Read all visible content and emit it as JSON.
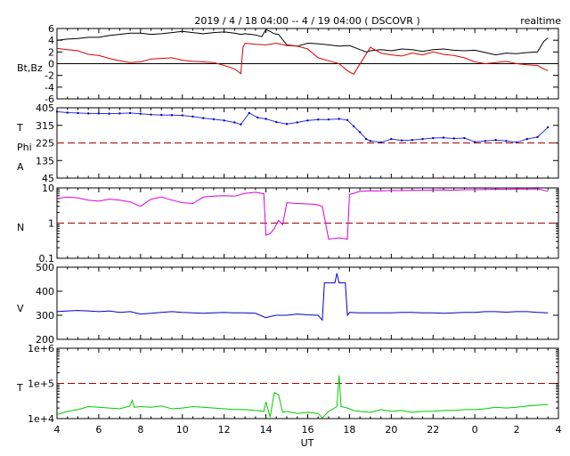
{
  "header": {
    "title": "2019 / 4 / 18  04:00 -- 4 / 19  04:00 ( DSCOVR )",
    "mode": "realtime"
  },
  "x_axis": {
    "label": "UT",
    "tick_labels": [
      "4",
      "6",
      "8",
      "10",
      "12",
      "14",
      "16",
      "18",
      "20",
      "22",
      "0",
      "2",
      "4"
    ]
  },
  "panels": [
    {
      "id": "bt-bz",
      "ylabels": [
        "Bt,Bz"
      ],
      "tick_labels": [
        "6",
        "4",
        "2",
        "0",
        "-2",
        "-4",
        "-6"
      ]
    },
    {
      "id": "t-phi-a",
      "ylabels": [
        "T",
        "Phi",
        "A"
      ],
      "tick_labels": [
        "405",
        "315",
        "225",
        "135",
        "45"
      ]
    },
    {
      "id": "density",
      "ylabels": [
        "N"
      ],
      "tick_labels": [
        "10",
        "1",
        "0.1"
      ]
    },
    {
      "id": "speed",
      "ylabels": [
        "V"
      ],
      "tick_labels": [
        "500",
        "400",
        "300",
        "200"
      ]
    },
    {
      "id": "temperature",
      "ylabels": [
        "T"
      ],
      "tick_labels": [
        "1e+6",
        "1e+5",
        "1e+4"
      ]
    }
  ],
  "chart_data": [
    {
      "type": "line",
      "x_unit": "UT hours (18 Apr 04:00 to 19 Apr 04:00, 28 = 04 UT next day)",
      "ylim": [
        -6,
        6
      ],
      "y_ticks": [
        6,
        4,
        2,
        0,
        -2,
        -4,
        -6
      ],
      "reference_line": 0,
      "series": [
        {
          "color": "#000000",
          "x": [
            4,
            4.5,
            5,
            5.5,
            6,
            6.5,
            7,
            7.5,
            8,
            8.5,
            9,
            9.5,
            10,
            10.5,
            11,
            11.5,
            12,
            12.5,
            12.8,
            13,
            13.5,
            13.8,
            14.0,
            14.2,
            14.4,
            14.6,
            15,
            15.5,
            16,
            16.5,
            17,
            17.5,
            18,
            18.5,
            18.8,
            19,
            19.5,
            20,
            20.5,
            21,
            21.5,
            22,
            22.5,
            23,
            23.5,
            24,
            24.5,
            25,
            25.5,
            26,
            26.5,
            27,
            27.3,
            27.5
          ],
          "y": [
            4.0,
            4.2,
            4.3,
            4.5,
            4.5,
            4.8,
            5.0,
            5.2,
            5.2,
            5.0,
            5.1,
            5.3,
            5.5,
            5.3,
            5.1,
            5.3,
            5.4,
            5.2,
            5.0,
            5.1,
            4.9,
            4.6,
            5.8,
            5.5,
            5.1,
            5.0,
            3.2,
            3.0,
            3.5,
            3.4,
            3.2,
            3.0,
            3.1,
            2.4,
            2.0,
            2.2,
            2.4,
            2.2,
            2.5,
            2.4,
            2.1,
            2.4,
            2.5,
            2.3,
            2.2,
            2.3,
            1.9,
            1.5,
            1.8,
            1.7,
            1.9,
            2.0,
            3.8,
            4.4
          ]
        },
        {
          "color": "#dd0000",
          "x": [
            4,
            4.5,
            5,
            5.5,
            6,
            6.5,
            7,
            7.5,
            8,
            8.5,
            9,
            9.5,
            10,
            10.5,
            11,
            11.5,
            12,
            12.5,
            12.8,
            12.9,
            13,
            13.5,
            14.0,
            14.5,
            15,
            15.5,
            16,
            16.5,
            17,
            17.5,
            17.9,
            18.2,
            18.6,
            19,
            19.5,
            20,
            20.5,
            21,
            21.5,
            22,
            22.5,
            23,
            23.5,
            24,
            24.5,
            25,
            25.5,
            26,
            26.5,
            27,
            27.3,
            27.5
          ],
          "y": [
            2.6,
            2.4,
            2.2,
            1.6,
            1.4,
            0.9,
            0.5,
            0.2,
            0.3,
            0.8,
            0.9,
            1.0,
            0.6,
            0.4,
            0.3,
            0.2,
            -0.3,
            -0.9,
            -1.7,
            2.8,
            3.5,
            3.3,
            3.2,
            3.5,
            3.1,
            3.0,
            2.5,
            1.0,
            0.5,
            0.0,
            -1.2,
            -1.8,
            0.5,
            2.8,
            1.8,
            1.5,
            1.3,
            1.8,
            1.5,
            2.0,
            1.6,
            1.4,
            1.0,
            0.3,
            0.0,
            0.2,
            0.4,
            0.0,
            -0.2,
            -0.3,
            -0.9,
            -1.2
          ]
        }
      ]
    },
    {
      "type": "scatter",
      "ylim": [
        45,
        405
      ],
      "y_ticks": [
        405,
        315,
        225,
        135,
        45
      ],
      "reference_line": 225,
      "series": [
        {
          "color": "#0000cc",
          "x": [
            4,
            4.5,
            5,
            5.5,
            6,
            6.5,
            7,
            7.5,
            8,
            8.5,
            9,
            9.5,
            10,
            10.5,
            11,
            11.5,
            12,
            12.5,
            12.8,
            13.2,
            13.6,
            14.0,
            14.5,
            15,
            15.5,
            16,
            16.5,
            17,
            17.5,
            17.9,
            18.2,
            18.5,
            18.8,
            19,
            19.5,
            20,
            20.5,
            21,
            21.5,
            22,
            22.5,
            23,
            23.5,
            24,
            24.5,
            25,
            25.5,
            26,
            26.5,
            27,
            27.5
          ],
          "y": [
            385,
            380,
            378,
            376,
            376,
            375,
            376,
            378,
            374,
            370,
            368,
            367,
            366,
            360,
            352,
            346,
            340,
            330,
            320,
            378,
            355,
            348,
            332,
            322,
            330,
            340,
            345,
            345,
            348,
            342,
            310,
            280,
            245,
            235,
            228,
            245,
            238,
            240,
            245,
            250,
            252,
            248,
            250,
            230,
            235,
            240,
            235,
            228,
            245,
            255,
            305
          ]
        }
      ]
    },
    {
      "type": "line",
      "y_scale": "log",
      "ylim": [
        0.1,
        10
      ],
      "y_ticks": [
        10,
        1,
        0.1
      ],
      "reference_line": 1,
      "series": [
        {
          "color": "#dd00dd",
          "x": [
            4,
            4.5,
            5,
            5.5,
            6,
            6.5,
            7,
            7.5,
            8,
            8.5,
            9,
            9.5,
            10,
            10.5,
            11,
            11.5,
            12,
            12.5,
            13,
            13.5,
            13.9,
            14.0,
            14.2,
            14.4,
            14.6,
            14.8,
            15.0,
            15.5,
            16.0,
            16.4,
            16.7,
            17.0,
            17.5,
            17.9,
            18.0,
            18.2,
            18.5,
            19,
            19.5,
            20,
            20.5,
            21,
            21.5,
            22,
            22.5,
            23,
            23.5,
            24,
            24.5,
            25,
            25.5,
            26,
            26.5,
            27,
            27.5
          ],
          "y": [
            5.0,
            5.5,
            5.2,
            4.5,
            4.2,
            4.8,
            4.5,
            4.0,
            3.0,
            4.8,
            5.5,
            4.5,
            3.8,
            3.6,
            5.5,
            5.8,
            6.0,
            5.8,
            7.0,
            7.5,
            6.8,
            0.45,
            0.5,
            0.7,
            1.2,
            0.9,
            3.8,
            3.6,
            3.5,
            3.4,
            3.0,
            0.35,
            0.38,
            0.35,
            6.5,
            7.0,
            8.0,
            8.3,
            8.2,
            8.5,
            8.4,
            8.6,
            8.5,
            8.7,
            8.8,
            8.6,
            8.9,
            8.9,
            9.0,
            9.2,
            9.1,
            9.3,
            9.2,
            9.4,
            8.0
          ]
        }
      ]
    },
    {
      "type": "line",
      "ylim": [
        200,
        500
      ],
      "y_ticks": [
        500,
        400,
        300,
        200
      ],
      "series": [
        {
          "color": "#0000cc",
          "x": [
            4,
            4.5,
            5,
            5.5,
            6,
            6.5,
            7,
            7.5,
            8,
            8.5,
            9,
            9.5,
            10,
            10.5,
            11,
            11.5,
            12,
            12.5,
            13,
            13.5,
            14.0,
            14.2,
            14.5,
            15,
            15.5,
            16,
            16.5,
            16.7,
            16.8,
            17.0,
            17.3,
            17.4,
            17.5,
            17.8,
            17.9,
            18.0,
            18.5,
            19,
            19.5,
            20,
            20.5,
            21,
            21.5,
            22,
            22.5,
            23,
            23.5,
            24,
            24.5,
            25,
            25.5,
            26,
            26.5,
            27,
            27.5
          ],
          "y": [
            315,
            318,
            320,
            318,
            315,
            318,
            312,
            315,
            305,
            308,
            312,
            315,
            312,
            310,
            308,
            310,
            312,
            310,
            310,
            308,
            290,
            295,
            300,
            300,
            305,
            302,
            300,
            280,
            435,
            435,
            435,
            475,
            435,
            435,
            300,
            312,
            310,
            310,
            310,
            310,
            312,
            312,
            310,
            310,
            308,
            310,
            312,
            312,
            315,
            315,
            313,
            315,
            315,
            312,
            310
          ]
        }
      ]
    },
    {
      "type": "line",
      "y_scale": "log",
      "ylim": [
        10000,
        1000000
      ],
      "y_ticks": [
        1000000,
        100000,
        10000
      ],
      "reference_line": 100000,
      "series": [
        {
          "color": "#00cc00",
          "x": [
            4,
            4.5,
            5,
            5.5,
            6,
            6.5,
            7,
            7.5,
            7.6,
            7.7,
            8,
            8.5,
            9,
            9.5,
            10,
            10.5,
            11,
            11.5,
            12,
            12.5,
            13,
            13.5,
            13.9,
            14.0,
            14.2,
            14.4,
            14.6,
            14.8,
            15,
            15.5,
            16,
            16.5,
            16.7,
            17.0,
            17.4,
            17.5,
            17.6,
            17.9,
            18.2,
            18.5,
            19,
            19.5,
            20,
            20.5,
            21,
            21.5,
            22,
            22.5,
            23,
            23.5,
            24,
            24.5,
            25,
            25.5,
            26,
            26.5,
            27,
            27.5
          ],
          "y": [
            13000,
            16000,
            18000,
            22000,
            21000,
            20000,
            19000,
            23000,
            33000,
            21000,
            22000,
            21000,
            23000,
            19000,
            20000,
            22000,
            21000,
            20000,
            19000,
            18000,
            18000,
            17000,
            16000,
            30000,
            11000,
            55000,
            48000,
            15000,
            16000,
            14000,
            15000,
            14000,
            10500,
            16000,
            22000,
            170000,
            22000,
            20000,
            17000,
            16000,
            15000,
            18000,
            16000,
            17000,
            15000,
            16000,
            16000,
            17000,
            17000,
            18000,
            18000,
            19000,
            21000,
            20000,
            21000,
            23000,
            24000,
            25000
          ]
        }
      ]
    }
  ]
}
